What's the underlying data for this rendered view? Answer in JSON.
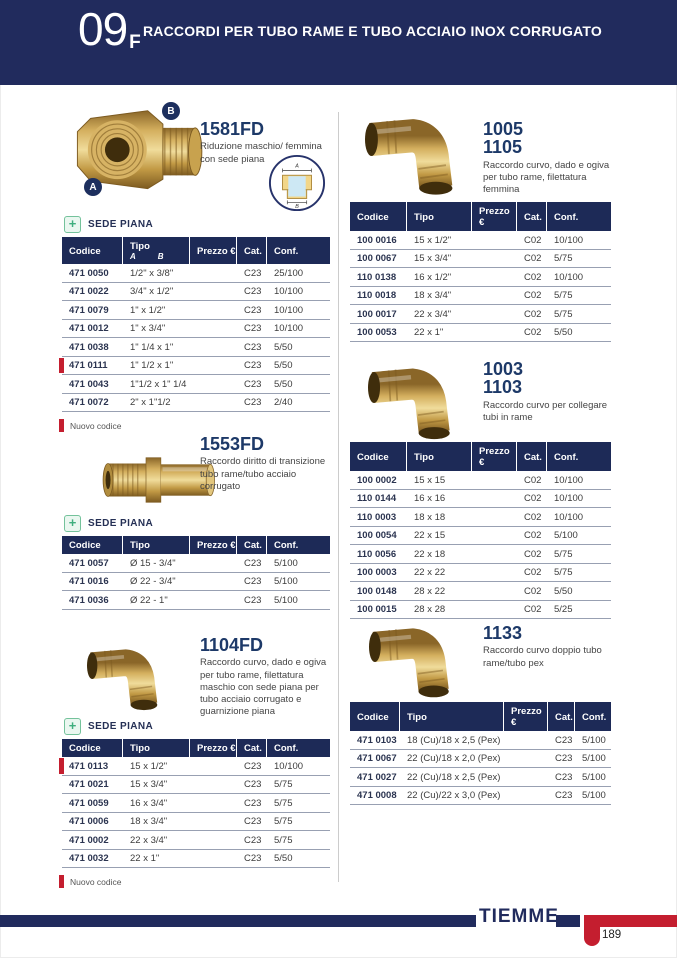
{
  "header": {
    "section_number": "09",
    "section_letter": "F",
    "title": "RACCORDI PER TUBO RAME E TUBO ACCIAIO INOX CORRUGATO"
  },
  "labels": {
    "sede_piana": "SEDE PIANA",
    "nuovo_codice": "Nuovo codice",
    "plus_sign": "+"
  },
  "colors": {
    "navy": "#212b5d",
    "table_header_navy": "#1d2a57",
    "new_code_red": "#c41e2f",
    "sede_green": "#74c29b",
    "brass": "#d4af5e"
  },
  "diagram": {
    "top_label": "A",
    "bottom_label": "B"
  },
  "products": [
    {
      "codes": [
        "1581FD"
      ],
      "description": "Riduzione maschio/ femmina con sede piana",
      "badges": [
        "A",
        "B"
      ],
      "table": {
        "headers": [
          "Codice",
          "Tipo",
          "Prezzo €",
          "Cat.",
          "Conf."
        ],
        "tipo_sub": [
          "A",
          "B"
        ],
        "rows": [
          {
            "new": false,
            "cells": [
              "471 0050",
              "1/2\" x 3/8\"",
              "",
              "C23",
              "25/100"
            ]
          },
          {
            "new": false,
            "cells": [
              "471 0022",
              "3/4\" x 1/2\"",
              "",
              "C23",
              "10/100"
            ]
          },
          {
            "new": false,
            "cells": [
              "471 0079",
              "1\" x 1/2\"",
              "",
              "C23",
              "10/100"
            ]
          },
          {
            "new": false,
            "cells": [
              "471 0012",
              "1\" x 3/4\"",
              "",
              "C23",
              "10/100"
            ]
          },
          {
            "new": false,
            "cells": [
              "471 0038",
              "1\" 1/4 x 1\"",
              "",
              "C23",
              "5/50"
            ]
          },
          {
            "new": true,
            "cells": [
              "471 0111",
              "1\" 1/2 x 1\"",
              "",
              "C23",
              "5/50"
            ]
          },
          {
            "new": false,
            "cells": [
              "471 0043",
              "1\"1/2 x 1\" 1/4",
              "",
              "C23",
              "5/50"
            ]
          },
          {
            "new": false,
            "cells": [
              "471 0072",
              "2\" x 1\"1/2",
              "",
              "C23",
              "2/40"
            ]
          }
        ]
      }
    },
    {
      "codes": [
        "1005",
        "1105"
      ],
      "description": "Raccordo curvo, dado e ogiva per tubo rame, filettatura femmina",
      "table": {
        "headers": [
          "Codice",
          "Tipo",
          "Prezzo €",
          "Cat.",
          "Conf."
        ],
        "rows": [
          {
            "new": false,
            "cells": [
              "100 0016",
              "15 x 1/2\"",
              "",
              "C02",
              "10/100"
            ]
          },
          {
            "new": false,
            "cells": [
              "100 0067",
              "15 x 3/4\"",
              "",
              "C02",
              "5/75"
            ]
          },
          {
            "new": false,
            "cells": [
              "110 0138",
              "16 x 1/2\"",
              "",
              "C02",
              "10/100"
            ]
          },
          {
            "new": false,
            "cells": [
              "110 0018",
              "18 x 3/4\"",
              "",
              "C02",
              "5/75"
            ]
          },
          {
            "new": false,
            "cells": [
              "100 0017",
              "22 x 3/4\"",
              "",
              "C02",
              "5/75"
            ]
          },
          {
            "new": false,
            "cells": [
              "100 0053",
              "22 x 1\"",
              "",
              "C02",
              "5/50"
            ]
          }
        ]
      }
    },
    {
      "codes": [
        "1553FD"
      ],
      "description": "Raccordo diritto di transizione tubo rame/tubo acciaio corrugato",
      "table": {
        "headers": [
          "Codice",
          "Tipo",
          "Prezzo €",
          "Cat.",
          "Conf."
        ],
        "rows": [
          {
            "new": false,
            "cells": [
              "471 0057",
              "Ø 15 - 3/4\"",
              "",
              "C23",
              "5/100"
            ]
          },
          {
            "new": false,
            "cells": [
              "471 0016",
              "Ø 22 - 3/4\"",
              "",
              "C23",
              "5/100"
            ]
          },
          {
            "new": false,
            "cells": [
              "471 0036",
              "Ø 22 - 1\"",
              "",
              "C23",
              "5/100"
            ]
          }
        ]
      }
    },
    {
      "codes": [
        "1003",
        "1103"
      ],
      "description": "Raccordo curvo per collegare tubi in rame",
      "table": {
        "headers": [
          "Codice",
          "Tipo",
          "Prezzo €",
          "Cat.",
          "Conf."
        ],
        "rows": [
          {
            "new": false,
            "cells": [
              "100 0002",
              "15 x 15",
              "",
              "C02",
              "10/100"
            ]
          },
          {
            "new": false,
            "cells": [
              "110 0144",
              "16 x 16",
              "",
              "C02",
              "10/100"
            ]
          },
          {
            "new": false,
            "cells": [
              "110 0003",
              "18 x 18",
              "",
              "C02",
              "10/100"
            ]
          },
          {
            "new": false,
            "cells": [
              "100 0054",
              "22 x 15",
              "",
              "C02",
              "5/100"
            ]
          },
          {
            "new": false,
            "cells": [
              "110 0056",
              "22 x 18",
              "",
              "C02",
              "5/75"
            ]
          },
          {
            "new": false,
            "cells": [
              "100 0003",
              "22 x 22",
              "",
              "C02",
              "5/75"
            ]
          },
          {
            "new": false,
            "cells": [
              "100 0148",
              "28 x 22",
              "",
              "C02",
              "5/50"
            ]
          },
          {
            "new": false,
            "cells": [
              "100 0015",
              "28 x 28",
              "",
              "C02",
              "5/25"
            ]
          }
        ]
      }
    },
    {
      "codes": [
        "1104FD"
      ],
      "description": "Raccordo curvo, dado e ogiva per tubo rame, filettatura maschio con sede piana per tubo acciaio corrugato e guarnizione piana",
      "table": {
        "headers": [
          "Codice",
          "Tipo",
          "Prezzo €",
          "Cat.",
          "Conf."
        ],
        "rows": [
          {
            "new": true,
            "cells": [
              "471 0113",
              "15 x 1/2\"",
              "",
              "C23",
              "10/100"
            ]
          },
          {
            "new": false,
            "cells": [
              "471 0021",
              "15 x 3/4\"",
              "",
              "C23",
              "5/75"
            ]
          },
          {
            "new": false,
            "cells": [
              "471 0059",
              "16 x 3/4\"",
              "",
              "C23",
              "5/75"
            ]
          },
          {
            "new": false,
            "cells": [
              "471 0006",
              "18 x 3/4\"",
              "",
              "C23",
              "5/75"
            ]
          },
          {
            "new": false,
            "cells": [
              "471 0002",
              "22 x 3/4\"",
              "",
              "C23",
              "5/75"
            ]
          },
          {
            "new": false,
            "cells": [
              "471 0032",
              "22 x 1\"",
              "",
              "C23",
              "5/50"
            ]
          }
        ]
      }
    },
    {
      "codes": [
        "1133"
      ],
      "description": "Raccordo curvo doppio tubo rame/tubo pex",
      "table": {
        "headers": [
          "Codice",
          "Tipo",
          "Prezzo €",
          "Cat.",
          "Conf."
        ],
        "rows": [
          {
            "new": false,
            "cells": [
              "471 0103",
              "18 (Cu)/18 x 2,5 (Pex)",
              "",
              "C23",
              "5/100"
            ]
          },
          {
            "new": false,
            "cells": [
              "471 0067",
              "22 (Cu)/18 x 2,0 (Pex)",
              "",
              "C23",
              "5/100"
            ]
          },
          {
            "new": false,
            "cells": [
              "471 0027",
              "22 (Cu)/18 x 2,5 (Pex)",
              "",
              "C23",
              "5/100"
            ]
          },
          {
            "new": false,
            "cells": [
              "471 0008",
              "22 (Cu)/22 x 3,0 (Pex)",
              "",
              "C23",
              "5/100"
            ]
          }
        ]
      }
    }
  ],
  "footer": {
    "brand": "TIEMME",
    "page_number": "189"
  }
}
